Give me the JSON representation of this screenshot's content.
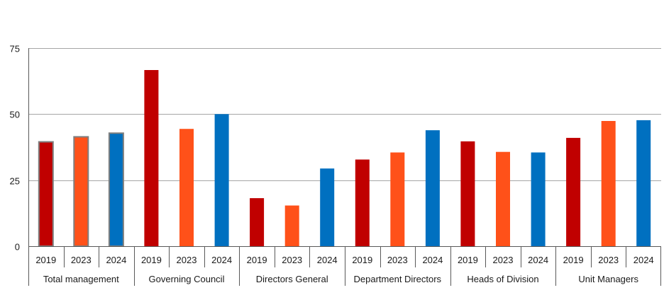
{
  "chart_data": {
    "type": "bar",
    "title": "",
    "xlabel": "",
    "ylabel": "",
    "ylim": [
      0,
      75
    ],
    "yticks": [
      0,
      25,
      50,
      75
    ],
    "grid": true,
    "legend": "none",
    "groups": [
      {
        "label": "Total management",
        "years": [
          "2019",
          "2023",
          "2024"
        ],
        "values": [
          39.5,
          41.4,
          42.8
        ],
        "outlined": true
      },
      {
        "label": "Governing Council",
        "years": [
          "2019",
          "2023",
          "2024"
        ],
        "values": [
          66.7,
          44.4,
          50.0
        ],
        "outlined": false
      },
      {
        "label": "Directors General",
        "years": [
          "2019",
          "2023",
          "2024"
        ],
        "values": [
          18.2,
          15.4,
          29.4
        ],
        "outlined": false
      },
      {
        "label": "Department Directors",
        "years": [
          "2019",
          "2023",
          "2024"
        ],
        "values": [
          32.8,
          35.5,
          43.9
        ],
        "outlined": false
      },
      {
        "label": "Heads of Division",
        "years": [
          "2019",
          "2023",
          "2024"
        ],
        "values": [
          39.7,
          35.7,
          35.5
        ],
        "outlined": false
      },
      {
        "label": "Unit Managers",
        "years": [
          "2019",
          "2023",
          "2024"
        ],
        "values": [
          41.0,
          47.4,
          47.7
        ],
        "outlined": false
      }
    ],
    "colors": {
      "2019": "#c00000",
      "2023": "#ff5119",
      "2024": "#0070c0",
      "outline": "#7f7f7f",
      "grid": "#a6a6a6",
      "axis": "#595959"
    }
  }
}
